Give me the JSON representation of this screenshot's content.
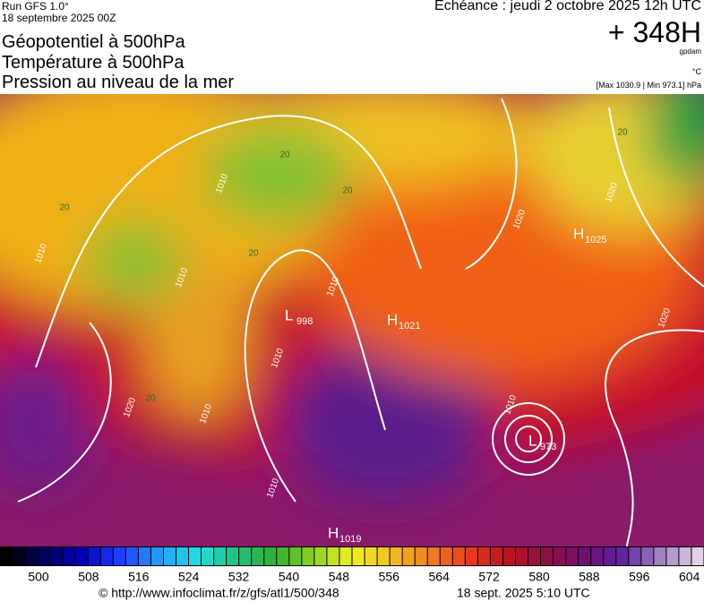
{
  "header": {
    "run": "Run GFS 1.0°",
    "date": "18 septembre 2025 00Z",
    "titles": [
      "Géopotentiel à 500hPa",
      "Température à 500hPa",
      "Pression au niveau de la mer"
    ],
    "valid": "Echéance : jeudi 2 octobre 2025 12h UTC",
    "lead": "+ 348H",
    "unit_geo": "gpdam",
    "unit_temp": "°C",
    "range": "[Max 1030.9 | Min 973.1] hPa"
  },
  "map": {
    "pressure_centers": [
      {
        "symbol": "H",
        "value": "1025"
      },
      {
        "symbol": "L",
        "value": "998"
      },
      {
        "symbol": "H",
        "value": "1021"
      },
      {
        "symbol": "L",
        "value": "973"
      },
      {
        "symbol": "H",
        "value": "1019"
      }
    ],
    "isobar_labels": [
      "1010",
      "1010",
      "1010",
      "1010",
      "1010",
      "1010",
      "1010",
      "1010",
      "1020",
      "1020",
      "1020",
      "1020"
    ],
    "isotherm_labels": [
      "20",
      "20",
      "20",
      "20",
      "20",
      "20"
    ]
  },
  "colorbar": {
    "ticks": [
      500,
      508,
      516,
      524,
      532,
      540,
      548,
      556,
      564,
      572,
      580,
      588,
      596,
      604
    ]
  },
  "footer": {
    "url": "© http://www.infoclimat.fr/z/gfs/atl1/500/348",
    "timestamp": "18 sept. 2025  5:10 UTC"
  }
}
